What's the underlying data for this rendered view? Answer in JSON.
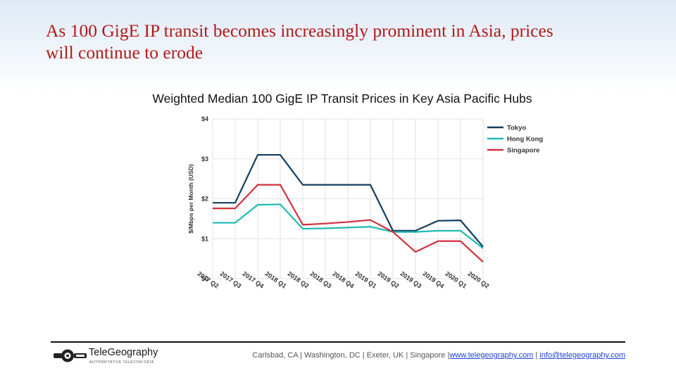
{
  "slide": {
    "title_line1": "As 100 GigE IP transit becomes increasingly prominent in Asia, prices",
    "title_line2": "will continue to erode"
  },
  "chart_data": {
    "type": "line",
    "title": "Weighted Median 100 GigE IP Transit Prices in Key Asia Pacific Hubs",
    "xlabel": "",
    "ylabel": "$/Mbps per Month (USD)",
    "ylim": [
      0,
      4
    ],
    "yticks": [
      0,
      1,
      2,
      3,
      4
    ],
    "ytick_labels": [
      "$0",
      "$1",
      "$2",
      "$3",
      "$4"
    ],
    "grid": true,
    "legend_position": "top-right",
    "categories": [
      "2017 Q2",
      "2017 Q3",
      "2017 Q4",
      "2018 Q1",
      "2018 Q2",
      "2018 Q3",
      "2018 Q4",
      "2019 Q1",
      "2019 Q2",
      "2019 Q3",
      "2019 Q4",
      "2020 Q1",
      "2020 Q2"
    ],
    "series": [
      {
        "name": "Tokyo",
        "color": "#143e5e",
        "values": [
          1.9,
          1.9,
          3.1,
          3.1,
          2.35,
          2.35,
          2.35,
          2.35,
          1.2,
          1.2,
          1.45,
          1.46,
          0.8
        ]
      },
      {
        "name": "Hong Kong",
        "color": "#1fbab0",
        "values": [
          1.4,
          1.4,
          1.85,
          1.86,
          1.25,
          1.26,
          1.28,
          1.3,
          1.17,
          1.17,
          1.2,
          1.2,
          0.76
        ]
      },
      {
        "name": "Singapore",
        "color": "#d0303c",
        "values": [
          1.76,
          1.76,
          2.35,
          2.35,
          1.35,
          1.38,
          1.42,
          1.47,
          1.17,
          0.67,
          0.94,
          0.94,
          0.42
        ]
      }
    ]
  },
  "footer": {
    "logo_name": "TeleGeography",
    "logo_tag": "AUTHORITATIVE TELECOM DATA",
    "locations": "Carlsbad, CA | Washington, DC | Exeter, UK | Singapore |",
    "website": "www.telegeography.com",
    "sep": "|",
    "email": "info@telegeography.com"
  }
}
